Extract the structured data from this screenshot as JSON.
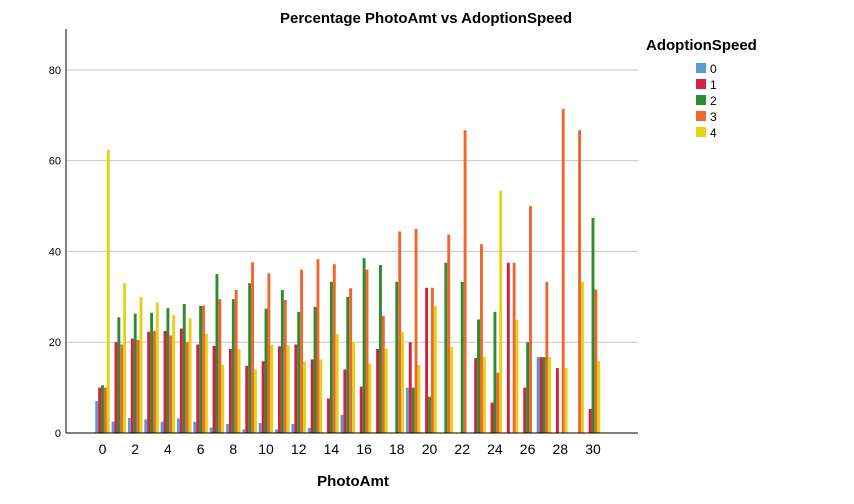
{
  "chart_data": {
    "type": "bar",
    "title": "Percentage  PhotoAmt vs AdoptionSpeed",
    "xlabel": "PhotoAmt",
    "ylabel": "",
    "ylim": [
      0,
      89
    ],
    "yticks": [
      0,
      20,
      40,
      60,
      80
    ],
    "grid": "horizontal",
    "legend_title": "AdoptionSpeed",
    "legend_position": "right",
    "categories": [
      0,
      1,
      2,
      3,
      4,
      5,
      6,
      7,
      8,
      9,
      10,
      11,
      12,
      13,
      14,
      15,
      16,
      17,
      18,
      19,
      20,
      21,
      22,
      23,
      24,
      25,
      26,
      27,
      28,
      29,
      30
    ],
    "xtick_labels": [
      "0",
      "2",
      "4",
      "6",
      "8",
      "10",
      "12",
      "14",
      "16",
      "18",
      "20",
      "22",
      "24",
      "26",
      "28",
      "30"
    ],
    "series": [
      {
        "name": "0",
        "color": "#5b9bd5",
        "values": [
          7,
          2.5,
          3.3,
          3,
          2.5,
          3.2,
          2.5,
          1.2,
          2,
          0.8,
          2.2,
          0.8,
          2,
          1.1,
          0,
          4,
          0,
          0,
          0,
          10,
          0,
          0,
          0,
          0,
          0,
          0,
          0,
          16.7,
          0,
          0,
          0
        ]
      },
      {
        "name": "1",
        "color": "#d62042",
        "values": [
          10,
          20,
          20.8,
          22.3,
          22.5,
          23,
          19.5,
          19.2,
          18.5,
          14.8,
          15.8,
          19.1,
          19.5,
          16.2,
          7.6,
          14,
          10.2,
          18.5,
          0,
          20,
          32,
          0,
          0,
          16.5,
          6.7,
          37.5,
          10,
          16.7,
          14.3,
          0,
          5.3
        ]
      },
      {
        "name": "2",
        "color": "#2e8b2e",
        "values": [
          10.5,
          25.5,
          26.3,
          26.5,
          27.5,
          28.4,
          28,
          35,
          29.5,
          33,
          27.4,
          31.5,
          26.7,
          27.8,
          33.3,
          30,
          38.5,
          37,
          33.3,
          10,
          8,
          37.5,
          33.3,
          25,
          26.7,
          0,
          20,
          16.7,
          0,
          0,
          47.4
        ]
      },
      {
        "name": "3",
        "color": "#f0672d",
        "values": [
          10,
          19.5,
          20.5,
          22.5,
          21.5,
          20,
          28.1,
          29.5,
          31.5,
          37.6,
          35.2,
          29.3,
          36,
          38.3,
          37.2,
          31.9,
          36,
          25.8,
          44.4,
          45,
          32,
          43.7,
          66.7,
          41.6,
          13.3,
          37.5,
          50,
          33.3,
          71.4,
          66.7,
          31.6
        ]
      },
      {
        "name": "4",
        "color": "#e3d218",
        "values": [
          62.4,
          33,
          30,
          28.8,
          26,
          25.3,
          21.9,
          15,
          18.5,
          14,
          19.5,
          19.3,
          15.8,
          16.2,
          21.8,
          20,
          15.3,
          18.6,
          22.2,
          15,
          28,
          19,
          0,
          16.8,
          53.3,
          25,
          0,
          16.7,
          14.3,
          33.3,
          15.8
        ]
      }
    ]
  }
}
